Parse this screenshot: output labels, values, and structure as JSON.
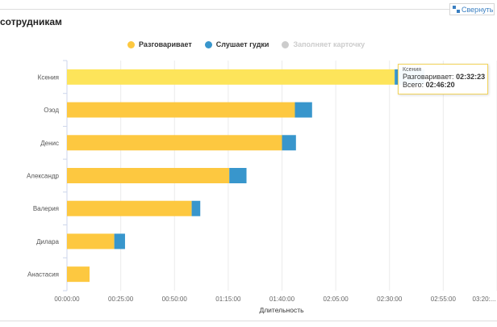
{
  "header": {
    "title": "сотрудникам",
    "collapse_label": "Свернуть"
  },
  "legend": [
    {
      "label": "Разговаривает",
      "color": "#fdc840",
      "active": true
    },
    {
      "label": "Слушает гудки",
      "color": "#3896cc",
      "active": true
    },
    {
      "label": "Заполняет карточку",
      "color": "#cccccc",
      "active": false
    }
  ],
  "tooltip": {
    "name": "Ксения",
    "talking_label": "Разговаривает:",
    "talking_value": "02:32:23",
    "total_label": "Всего:",
    "total_value": "02:46:20"
  },
  "chart_data": {
    "type": "bar",
    "orientation": "horizontal",
    "stacked": true,
    "title": "",
    "xlabel": "Длительность",
    "ylabel": "",
    "units": "minutes",
    "xlim": [
      0,
      200
    ],
    "x_ticks": [
      0,
      25,
      50,
      75,
      100,
      125,
      150,
      175,
      200
    ],
    "x_tick_labels": [
      "00:00:00",
      "00:25:00",
      "00:50:00",
      "01:15:00",
      "01:40:00",
      "02:05:00",
      "02:30:00",
      "02:55:00",
      "03:20:..."
    ],
    "grid": true,
    "legend_position": "top",
    "categories": [
      "Ксения",
      "Озод",
      "Денис",
      "Александр",
      "Валерия",
      "Дилара",
      "Анастасия"
    ],
    "series": [
      {
        "name": "Разговаривает",
        "color": "#fdc840",
        "values": [
          152.4,
          106,
          100,
          75.5,
          58,
          22,
          10.5
        ]
      },
      {
        "name": "Слушает гудки",
        "color": "#3896cc",
        "values": [
          13.9,
          8,
          6.5,
          8,
          4,
          5,
          0
        ]
      },
      {
        "name": "Заполняет карточку",
        "color": "#cccccc",
        "values": [
          0,
          0,
          0,
          0,
          0,
          0,
          0
        ],
        "hidden": true
      }
    ],
    "highlighted_category": "Ксения"
  }
}
